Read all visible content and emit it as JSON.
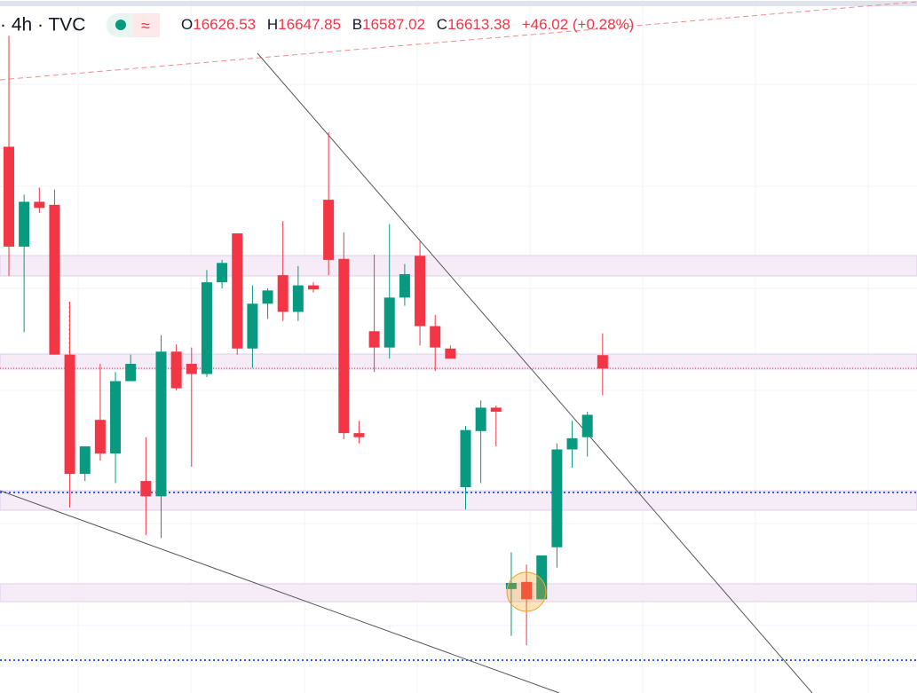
{
  "chart_data": {
    "type": "candlestick",
    "symbol": "· 4h · TVC",
    "ohlc_labels": [
      "O",
      "H",
      "B",
      "C"
    ],
    "change": "+46.02 (+0.28%)",
    "up_color": "#089981",
    "down_color": "#f23645",
    "ylim": [
      16295,
      16975
    ],
    "open": [
      16831,
      16733,
      16777,
      16774,
      16627,
      16510,
      16563,
      16530,
      16601,
      16503,
      16488,
      16630,
      16618,
      16608,
      16698,
      16746,
      16633,
      16677,
      16705,
      16669,
      16695,
      16779,
      16721,
      16550,
      16650,
      16634,
      16683,
      16724,
      16655,
      16633,
      16497,
      16552,
      16575,
      16397,
      16404,
      16387,
      16438,
      16534,
      16546,
      16626.53
    ],
    "high": [
      16940,
      16784,
      16791,
      16789,
      16679,
      16537,
      16618,
      16610,
      16627,
      16546,
      16646,
      16637,
      16634,
      16710,
      16720,
      16746,
      16695,
      16692,
      16758,
      16714,
      16698,
      16845,
      16747,
      16562,
      16725,
      16755,
      16716,
      16738,
      16666,
      16636,
      16557,
      16582,
      16577,
      16433,
      16421,
      16430,
      16540,
      16562,
      16571,
      16647.85
    ],
    "low": [
      16704,
      16649,
      16766,
      16627,
      16477,
      16503,
      16523,
      16501,
      16601,
      16450,
      16447,
      16592,
      16517,
      16605,
      16692,
      16627,
      16614,
      16662,
      16660,
      16660,
      16688,
      16705,
      16544,
      16540,
      16610,
      16623,
      16675,
      16636,
      16611,
      16623,
      16475,
      16501,
      16537,
      16351,
      16342,
      16387,
      16418,
      16516,
      16527,
      16587.02
    ],
    "close": [
      16733,
      16777,
      16771,
      16627,
      16510,
      16537,
      16530,
      16601,
      16618,
      16488,
      16630,
      16594,
      16608,
      16698,
      16717,
      16633,
      16677,
      16690,
      16669,
      16695,
      16691,
      16720,
      16550,
      16546,
      16634,
      16683,
      16706,
      16655,
      16634,
      16623,
      16553,
      16575,
      16571,
      16403,
      16387,
      16430,
      16534,
      16545,
      16568,
      16613.38
    ]
  }
}
